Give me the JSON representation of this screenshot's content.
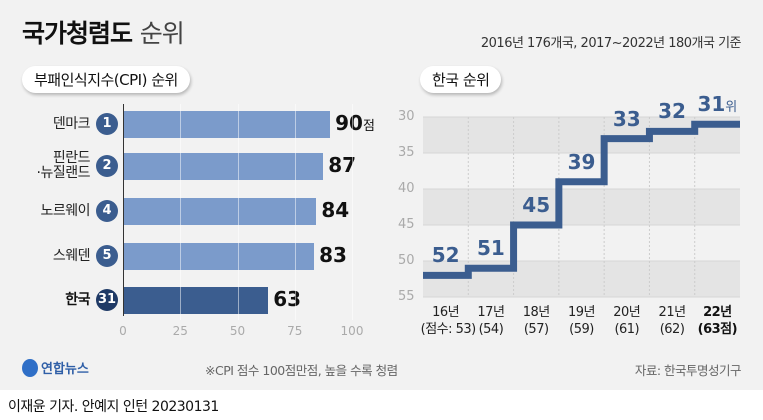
{
  "title": {
    "main": "국가청렴도",
    "sub": "순위"
  },
  "subtitle": "2016년 176개국, 2017~2022년 180개국 기준",
  "colors": {
    "bar": "#7b9bcb",
    "bar_highlight": "#3b5d8f",
    "line": "#3b5d8f",
    "band": "#e4e4e4"
  },
  "chart_data": [
    {
      "type": "bar",
      "orientation": "horizontal",
      "title": "부패인식지수(CPI) 순위",
      "categories": [
        "덴마크",
        "핀란드·뉴질랜드",
        "노르웨이",
        "스웨덴",
        "한국"
      ],
      "category_lines": [
        [
          "덴마크"
        ],
        [
          "핀란드",
          "·뉴질랜드"
        ],
        [
          "노르웨이"
        ],
        [
          "스웨덴"
        ],
        [
          "한국"
        ]
      ],
      "ranks": [
        "1",
        "2",
        "4",
        "5",
        "31"
      ],
      "values": [
        90,
        87,
        84,
        83,
        63
      ],
      "value_labels": [
        "90",
        "87",
        "84",
        "83",
        "63"
      ],
      "value_unit": "점",
      "xlim": [
        0,
        100
      ],
      "xticks": [
        "0",
        "25",
        "50",
        "75",
        "100"
      ],
      "highlight": "한국"
    },
    {
      "type": "line",
      "step": true,
      "title": "한국 순위",
      "categories": [
        "16년",
        "17년",
        "18년",
        "19년",
        "20년",
        "21년",
        "22년"
      ],
      "scores": [
        "(점수: 53)",
        "(54)",
        "(57)",
        "(59)",
        "(61)",
        "(62)",
        "(63점)"
      ],
      "values": [
        52,
        51,
        45,
        39,
        33,
        32,
        31
      ],
      "value_labels": [
        "52",
        "51",
        "45",
        "39",
        "33",
        "32",
        "31"
      ],
      "last_unit": "위",
      "ylim": [
        30,
        55
      ],
      "y_inverted": true,
      "yticks": [
        "30",
        "35",
        "40",
        "45",
        "50",
        "55"
      ]
    }
  ],
  "footer": {
    "logo": "연합뉴스",
    "note": "※CPI 점수 100점만점, 높을 수록 청렴",
    "source": "자료: 한국투명성기구",
    "credit": "이재윤 기자. 안예지 인턴  20230131"
  }
}
